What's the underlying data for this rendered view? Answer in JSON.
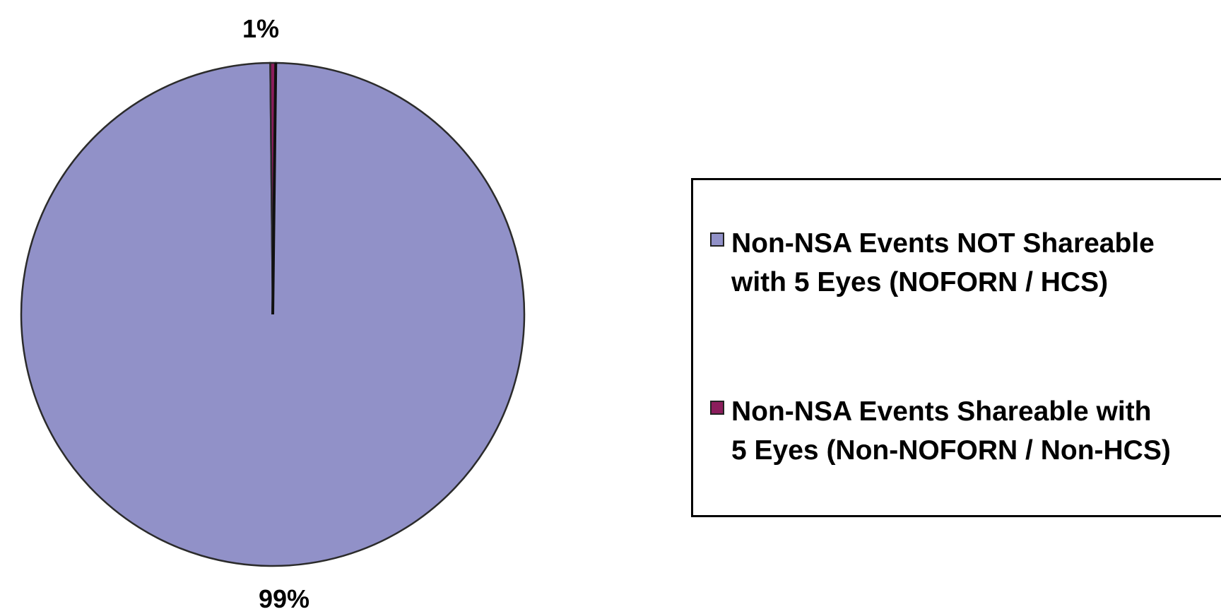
{
  "chart_data": {
    "type": "pie",
    "title": "",
    "slices": [
      {
        "label": "Non-NSA Events NOT Shareable with 5 Eyes (NOFORN / HCS)",
        "value": 99,
        "display": "99%",
        "color": "#9191c8"
      },
      {
        "label": "Non-NSA Events Shareable with 5 Eyes (Non-NOFORN / Non-HCS)",
        "value": 1,
        "display": "1%",
        "color": "#8b1d5c"
      }
    ],
    "legend_position": "right",
    "legend": [
      {
        "line1": "Non-NSA Events NOT Shareable",
        "line2": "with 5 Eyes (NOFORN / HCS)",
        "color": "#9191c8"
      },
      {
        "line1": "Non-NSA Events Shareable with",
        "line2": "5 Eyes (Non-NOFORN / Non-HCS)",
        "color": "#8b1d5c"
      }
    ]
  }
}
